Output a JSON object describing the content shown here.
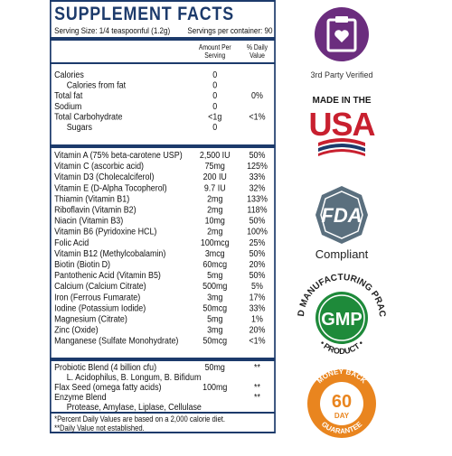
{
  "label": {
    "title": "SUPPLEMENT FACTS",
    "serving_size": "Serving Size: 1/4 teaspoonful (1.2g)",
    "servings": "Servings per container: 90",
    "columns": [
      [
        "Amount Per",
        "Serving"
      ],
      [
        "% Daily",
        "Value"
      ]
    ],
    "sections": [
      {
        "rows": [
          {
            "name": "Calories",
            "amount": "0",
            "sub": [
              {
                "name": "Calories from fat",
                "amount": "0"
              }
            ]
          },
          {
            "name": "Total fat",
            "amount": "0",
            "dv": "0%"
          },
          {
            "name": "Sodium",
            "amount": "0"
          },
          {
            "name": "Total Carbohydrate",
            "amount": "<1g",
            "dv": "<1%",
            "sub": [
              {
                "name": "Sugars",
                "amount": "0"
              }
            ]
          }
        ]
      },
      {
        "rows": [
          {
            "name": "Vitamin A (75% beta-carotene USP)",
            "amount": "2,500 IU",
            "dv": "50%"
          },
          {
            "name": "Vitamin C (ascorbic acid)",
            "amount": "75mg",
            "dv": "125%"
          },
          {
            "name": "Vitamin D3 (Cholecalciferol)",
            "amount": "200 IU",
            "dv": "33%"
          },
          {
            "name": "Vitamin E (D-Alpha Tocopherol)",
            "amount": "9.7 IU",
            "dv": "32%"
          },
          {
            "name": "Thiamin (Vitamin B1)",
            "amount": "2mg",
            "dv": "133%"
          },
          {
            "name": "Riboflavin (Vitamin B2)",
            "amount": "2mg",
            "dv": "118%"
          },
          {
            "name": "Niacin (Vitamin B3)",
            "amount": "10mg",
            "dv": "50%"
          },
          {
            "name": "Vitamin B6 (Pyridoxine HCL)",
            "amount": "2mg",
            "dv": "100%"
          },
          {
            "name": "Folic Acid",
            "amount": "100mcg",
            "dv": "25%"
          },
          {
            "name": "Vitamin B12 (Methylcobalamin)",
            "amount": "3mcg",
            "dv": "50%"
          },
          {
            "name": "Biotin (Biotin D)",
            "amount": "60mcg",
            "dv": "20%"
          },
          {
            "name": "Pantothenic Acid (Vitamin B5)",
            "amount": "5mg",
            "dv": "50%"
          },
          {
            "name": "Calcium (Calcium Citrate)",
            "amount": "500mg",
            "dv": "5%"
          },
          {
            "name": "Iron (Ferrous Fumarate)",
            "amount": "3mg",
            "dv": "17%"
          },
          {
            "name": "Iodine (Potassium Iodide)",
            "amount": "50mcg",
            "dv": "33%"
          },
          {
            "name": "Magnesium (Citrate)",
            "amount": "5mg",
            "dv": "1%"
          },
          {
            "name": "Zinc (Oxide)",
            "amount": "3mg",
            "dv": "20%"
          },
          {
            "name": "Manganese (Sulfate Monohydrate)",
            "amount": "50mcg",
            "dv": "<1%"
          }
        ]
      },
      {
        "rows": [
          {
            "name": "Probiotic Blend (4 billion cfu)",
            "amount": "50mg",
            "dv": "**",
            "sub": [
              {
                "name": "L. Acidophilus, B. Longum, B. Bifidum"
              }
            ]
          },
          {
            "name": "Flax Seed (omega fatty acids)",
            "amount": "100mg",
            "dv": "**"
          },
          {
            "name": "Enzyme Blend",
            "dv": "**",
            "sub": [
              {
                "name": "Protease, Amylase, Liplase, Cellulase"
              }
            ]
          }
        ]
      }
    ],
    "footnotes": [
      "*Percent Daily Values are based on a 2,000 calorie diet.",
      "**Daily Value not established."
    ]
  },
  "badges": {
    "verified": "3rd Party Verified",
    "made_in": "MADE IN THE",
    "usa": "USA",
    "fda": "FDA",
    "compliant": "Compliant",
    "gmp": "GMP",
    "gmp_top": "GOOD MANUFACTURING PRACTICE",
    "gmp_bottom": "• PRODUCT •",
    "money_back": "MONEY BACK",
    "days": "60",
    "day": "DAY",
    "guarantee": "GUARANTEE"
  }
}
